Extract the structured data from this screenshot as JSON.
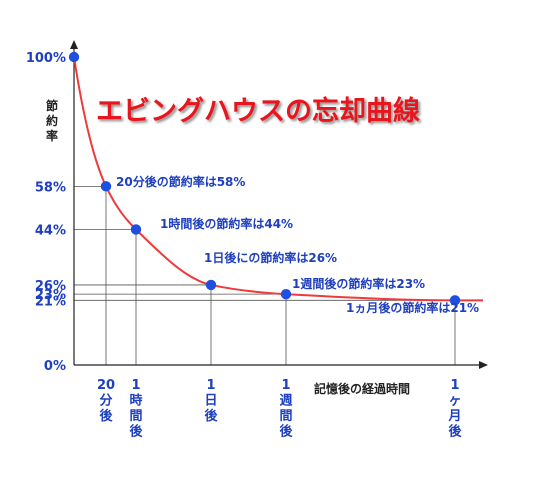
{
  "chart_data": {
    "type": "line",
    "title": "エビングハウスの忘却曲線",
    "ylabel": "節約率",
    "xlabel": "記憶後の経過時間",
    "ylim": [
      0,
      100
    ],
    "y_ticks": [
      {
        "value": 100,
        "label": "100%"
      },
      {
        "value": 58,
        "label": "58%"
      },
      {
        "value": 44,
        "label": "44%"
      },
      {
        "value": 26,
        "label": "26%"
      },
      {
        "value": 23,
        "label": "23%"
      },
      {
        "value": 21,
        "label": "21%"
      },
      {
        "value": 0,
        "label": "0%"
      }
    ],
    "points": [
      {
        "x_label": "",
        "y": 100,
        "annotation": ""
      },
      {
        "x_label": "20分後",
        "y": 58,
        "annotation": "20分後の節約率は58%"
      },
      {
        "x_label": "1時間後",
        "y": 44,
        "annotation": "1時間後の節約率は44%"
      },
      {
        "x_label": "1日後",
        "y": 26,
        "annotation": "1日後にの節約率は26%"
      },
      {
        "x_label": "1週間後",
        "y": 23,
        "annotation": "1週間後の節約率は23%"
      },
      {
        "x_label": "1ヶ月後",
        "y": 21,
        "annotation": "1ヵ月後の節約率は21%"
      }
    ],
    "grid": "guide-lines",
    "colors": {
      "curve": "#f03a3a",
      "points": "#1f4fe0",
      "text": "#1e3fbf",
      "title": "#e8141c",
      "axis": "#222222"
    }
  }
}
